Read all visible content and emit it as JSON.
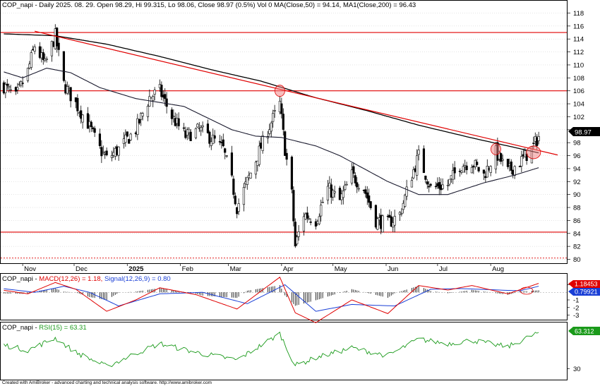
{
  "price_panel": {
    "title_text": "COP_napi - Daily 2025. 08. 29. Open 98.29, Hi 99.315, Lo 98.06, Close 98.97 (0.5%) Vol 0 MA(Close,50) = 94.14, MA1(Close,200) = 96.43",
    "last_price_label": "98.97",
    "colors": {
      "candle_up": "#ffffff",
      "candle_edge": "#000000",
      "ma50": "#1a1a2e",
      "ma200": "#000000",
      "trend": "#e00000",
      "level": "#e00000",
      "marker": "#f08080"
    }
  },
  "macd_panel": {
    "title_prefix": "COP_napi - ",
    "title_macd": "MACD(12,26) = 1.18,",
    "title_signal": "Signal(12,26,9) = 0.80",
    "macd_label": "1.18453",
    "signal_label": "0.79921",
    "colors": {
      "macd": "#e00000",
      "signal": "#1a3fd6",
      "hist": "#000000"
    }
  },
  "rsi_panel": {
    "title_prefix": "COP_napi - ",
    "title_rsi": "RSI(15) = 63.31",
    "rsi_label": "63.312",
    "colors": {
      "rsi": "#1a9a1a"
    }
  },
  "footer_text": "Created with AmiBroker - advanced charting and technical analysis software. http://www.amibroker.com",
  "chart_data": [
    {
      "type": "candlestick",
      "title": "COP_napi - Daily",
      "x_tick_labels": [
        "Nov",
        "Dec",
        "2025",
        "Feb",
        "Mar",
        "Apr",
        "May",
        "Jun",
        "Jul",
        "Aug"
      ],
      "y_tick_labels": [
        80,
        82,
        84,
        86,
        88,
        90,
        92,
        94,
        96,
        98,
        100,
        102,
        104,
        106,
        108,
        110,
        112,
        114,
        116,
        118
      ],
      "ylim": [
        79,
        119
      ],
      "last_close": 98.97,
      "horizontal_levels": [
        115.0,
        106.0,
        84.2,
        80.2
      ],
      "trendline": [
        {
          "date": "2024-11-08",
          "value": 115.2
        },
        {
          "date": "2025-08-31",
          "value": 96.5
        }
      ],
      "anchors": [
        {
          "date": "2024-10-20",
          "close": 107.0
        },
        {
          "date": "2024-10-28",
          "close": 105.0
        },
        {
          "date": "2024-11-04",
          "close": 109.0
        },
        {
          "date": "2024-11-08",
          "close": 113.0
        },
        {
          "date": "2024-11-14",
          "close": 110.0
        },
        {
          "date": "2024-11-20",
          "close": 114.5
        },
        {
          "date": "2024-11-25",
          "close": 107.0
        },
        {
          "date": "2024-12-02",
          "close": 104.0
        },
        {
          "date": "2024-12-09",
          "close": 101.0
        },
        {
          "date": "2024-12-16",
          "close": 97.0
        },
        {
          "date": "2024-12-20",
          "close": 95.5
        },
        {
          "date": "2024-12-27",
          "close": 97.0
        },
        {
          "date": "2025-01-06",
          "close": 100.0
        },
        {
          "date": "2025-01-14",
          "close": 105.0
        },
        {
          "date": "2025-01-20",
          "close": 106.0
        },
        {
          "date": "2025-01-27",
          "close": 102.0
        },
        {
          "date": "2025-02-04",
          "close": 99.0
        },
        {
          "date": "2025-02-12",
          "close": 100.0
        },
        {
          "date": "2025-02-20",
          "close": 98.5
        },
        {
          "date": "2025-02-26",
          "close": 97.0
        },
        {
          "date": "2025-03-03",
          "close": 92.0
        },
        {
          "date": "2025-03-06",
          "close": 88.0
        },
        {
          "date": "2025-03-12",
          "close": 92.0
        },
        {
          "date": "2025-03-18",
          "close": 96.0
        },
        {
          "date": "2025-03-24",
          "close": 100.0
        },
        {
          "date": "2025-03-31",
          "close": 104.0
        },
        {
          "date": "2025-04-03",
          "close": 97.0
        },
        {
          "date": "2025-04-07",
          "close": 90.0
        },
        {
          "date": "2025-04-09",
          "close": 82.0
        },
        {
          "date": "2025-04-14",
          "close": 87.0
        },
        {
          "date": "2025-04-21",
          "close": 86.0
        },
        {
          "date": "2025-04-28",
          "close": 91.0
        },
        {
          "date": "2025-05-05",
          "close": 89.0
        },
        {
          "date": "2025-05-12",
          "close": 93.0
        },
        {
          "date": "2025-05-19",
          "close": 91.0
        },
        {
          "date": "2025-05-26",
          "close": 86.0
        },
        {
          "date": "2025-06-02",
          "close": 85.5
        },
        {
          "date": "2025-06-09",
          "close": 87.0
        },
        {
          "date": "2025-06-16",
          "close": 93.0
        },
        {
          "date": "2025-06-20",
          "close": 96.0
        },
        {
          "date": "2025-06-27",
          "close": 91.0
        },
        {
          "date": "2025-07-07",
          "close": 91.5
        },
        {
          "date": "2025-07-14",
          "close": 94.5
        },
        {
          "date": "2025-07-21",
          "close": 95.0
        },
        {
          "date": "2025-07-28",
          "close": 93.0
        },
        {
          "date": "2025-08-04",
          "close": 96.5
        },
        {
          "date": "2025-08-11",
          "close": 93.5
        },
        {
          "date": "2025-08-18",
          "close": 95.0
        },
        {
          "date": "2025-08-25",
          "close": 97.0
        },
        {
          "date": "2025-08-29",
          "close": 98.97
        }
      ],
      "ma50_anchors": [
        {
          "date": "2024-10-20",
          "value": 109.0
        },
        {
          "date": "2024-11-01",
          "value": 108.0
        },
        {
          "date": "2024-11-15",
          "value": 109.5
        },
        {
          "date": "2024-11-29",
          "value": 108.8
        },
        {
          "date": "2024-12-16",
          "value": 106.5
        },
        {
          "date": "2025-01-06",
          "value": 104.8
        },
        {
          "date": "2025-02-03",
          "value": 103.6
        },
        {
          "date": "2025-03-03",
          "value": 100.0
        },
        {
          "date": "2025-03-17",
          "value": 99.0
        },
        {
          "date": "2025-04-01",
          "value": 98.8
        },
        {
          "date": "2025-04-21",
          "value": 97.5
        },
        {
          "date": "2025-05-05",
          "value": 96.0
        },
        {
          "date": "2025-05-19",
          "value": 94.0
        },
        {
          "date": "2025-06-02",
          "value": 92.0
        },
        {
          "date": "2025-06-20",
          "value": 90.0
        },
        {
          "date": "2025-07-07",
          "value": 90.0
        },
        {
          "date": "2025-07-28",
          "value": 91.8
        },
        {
          "date": "2025-08-15",
          "value": 93.0
        },
        {
          "date": "2025-08-29",
          "value": 94.14
        }
      ],
      "ma200_anchors": [
        {
          "date": "2024-10-20",
          "value": 114.8
        },
        {
          "date": "2024-11-20",
          "value": 114.5
        },
        {
          "date": "2024-12-20",
          "value": 113.2
        },
        {
          "date": "2025-01-20",
          "value": 111.3
        },
        {
          "date": "2025-02-20",
          "value": 109.2
        },
        {
          "date": "2025-03-20",
          "value": 107.5
        },
        {
          "date": "2025-04-20",
          "value": 105.0
        },
        {
          "date": "2025-05-20",
          "value": 103.0
        },
        {
          "date": "2025-06-20",
          "value": 100.7
        },
        {
          "date": "2025-07-20",
          "value": 98.8
        },
        {
          "date": "2025-08-29",
          "value": 96.43
        }
      ],
      "markers": [
        {
          "date": "2025-03-31",
          "value": 106.0
        },
        {
          "date": "2025-08-04",
          "value": 97.0
        },
        {
          "date": "2025-08-26",
          "value": 96.5
        }
      ]
    },
    {
      "type": "line",
      "title": "MACD(12,26)",
      "y_tick_labels": [
        "1",
        "-1",
        "-2",
        "-3"
      ],
      "ylim": [
        -4.2,
        2.6
      ],
      "macd_anchors": [
        {
          "date": "2024-10-20",
          "value": 0.3
        },
        {
          "date": "2024-11-04",
          "value": -0.2
        },
        {
          "date": "2024-11-20",
          "value": 1.3
        },
        {
          "date": "2024-12-02",
          "value": 0.4
        },
        {
          "date": "2024-12-20",
          "value": -2.5
        },
        {
          "date": "2025-01-06",
          "value": -1.0
        },
        {
          "date": "2025-01-20",
          "value": 0.6
        },
        {
          "date": "2025-02-10",
          "value": -0.3
        },
        {
          "date": "2025-03-06",
          "value": -2.2
        },
        {
          "date": "2025-03-31",
          "value": 2.0
        },
        {
          "date": "2025-04-09",
          "value": -2.7
        },
        {
          "date": "2025-04-21",
          "value": -4.0
        },
        {
          "date": "2025-05-12",
          "value": -1.0
        },
        {
          "date": "2025-06-02",
          "value": -2.8
        },
        {
          "date": "2025-06-20",
          "value": 0.9
        },
        {
          "date": "2025-07-07",
          "value": 0.3
        },
        {
          "date": "2025-07-21",
          "value": 0.9
        },
        {
          "date": "2025-08-11",
          "value": -0.2
        },
        {
          "date": "2025-08-29",
          "value": 1.18
        }
      ],
      "signal_anchors": [
        {
          "date": "2024-10-20",
          "value": 0.5
        },
        {
          "date": "2024-11-08",
          "value": 0.0
        },
        {
          "date": "2024-11-25",
          "value": 0.8
        },
        {
          "date": "2024-12-10",
          "value": 0.0
        },
        {
          "date": "2024-12-27",
          "value": -1.8
        },
        {
          "date": "2025-01-20",
          "value": -0.2
        },
        {
          "date": "2025-02-14",
          "value": 0.0
        },
        {
          "date": "2025-03-12",
          "value": -1.5
        },
        {
          "date": "2025-04-03",
          "value": 1.0
        },
        {
          "date": "2025-04-21",
          "value": -2.5
        },
        {
          "date": "2025-05-12",
          "value": -1.6
        },
        {
          "date": "2025-06-06",
          "value": -1.8
        },
        {
          "date": "2025-06-27",
          "value": 0.4
        },
        {
          "date": "2025-07-14",
          "value": 0.5
        },
        {
          "date": "2025-08-18",
          "value": 0.2
        },
        {
          "date": "2025-08-29",
          "value": 0.8
        }
      ]
    },
    {
      "type": "line",
      "title": "RSI(15)",
      "y_tick_labels": [
        "30"
      ],
      "ylim": [
        25,
        80
      ],
      "last_value": 63.31,
      "rsi_anchors": [
        {
          "date": "2024-10-20",
          "value": 52
        },
        {
          "date": "2024-11-04",
          "value": 47
        },
        {
          "date": "2024-11-20",
          "value": 58
        },
        {
          "date": "2024-12-02",
          "value": 45
        },
        {
          "date": "2024-12-20",
          "value": 32
        },
        {
          "date": "2025-01-06",
          "value": 44
        },
        {
          "date": "2025-01-20",
          "value": 53
        },
        {
          "date": "2025-02-10",
          "value": 45
        },
        {
          "date": "2025-03-06",
          "value": 38
        },
        {
          "date": "2025-03-31",
          "value": 62
        },
        {
          "date": "2025-04-09",
          "value": 33
        },
        {
          "date": "2025-04-21",
          "value": 40
        },
        {
          "date": "2025-05-12",
          "value": 49
        },
        {
          "date": "2025-06-02",
          "value": 42
        },
        {
          "date": "2025-06-20",
          "value": 57
        },
        {
          "date": "2025-07-07",
          "value": 53
        },
        {
          "date": "2025-07-21",
          "value": 56
        },
        {
          "date": "2025-08-11",
          "value": 50
        },
        {
          "date": "2025-08-29",
          "value": 63.31
        }
      ]
    }
  ]
}
